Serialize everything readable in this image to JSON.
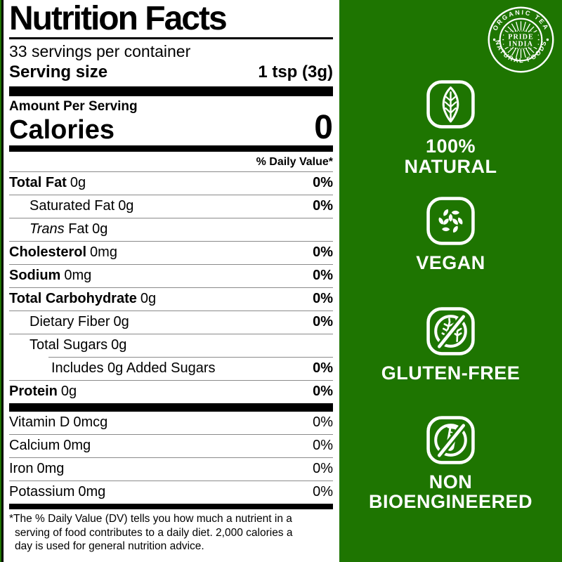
{
  "colors": {
    "panel_green": "#1E7501",
    "label_bg": "#FFFFFF",
    "label_text": "#000000",
    "hairline": "#8A8A8A",
    "badge_white": "#FFFFFF"
  },
  "label": {
    "title": "Nutrition Facts",
    "servings_per_container": "33 servings per container",
    "serving_size_label": "Serving size",
    "serving_size_value": "1 tsp (3g)",
    "amount_per_serving": "Amount Per Serving",
    "calories_label": "Calories",
    "calories_value": "0",
    "daily_value_header": "% Daily Value*",
    "main_rows": [
      {
        "name": "Total Fat",
        "amount": "0g",
        "dv": "0%"
      },
      {
        "name": "Saturated Fat",
        "amount": "0g",
        "dv": "0%"
      },
      {
        "name_italic": "Trans",
        "name": "Fat",
        "amount": "0g",
        "dv": ""
      },
      {
        "name": "Cholesterol",
        "amount": "0mg",
        "dv": "0%"
      },
      {
        "name": "Sodium",
        "amount": "0mg",
        "dv": "0%"
      },
      {
        "name": "Total Carbohydrate",
        "amount": "0g",
        "dv": "0%"
      },
      {
        "name": "Dietary Fiber",
        "amount": "0g",
        "dv": "0%"
      },
      {
        "name": "Total Sugars",
        "amount": "0g",
        "dv": ""
      },
      {
        "name": "Includes 0g Added Sugars",
        "amount": "",
        "dv": "0%"
      },
      {
        "name": "Protein",
        "amount": "0g",
        "dv": "0%"
      }
    ],
    "vitamin_rows": [
      {
        "name": "Vitamin D",
        "amount": "0mcg",
        "dv": "0%"
      },
      {
        "name": "Calcium",
        "amount": "0mg",
        "dv": "0%"
      },
      {
        "name": "Iron",
        "amount": "0mg",
        "dv": "0%"
      },
      {
        "name": "Potassium",
        "amount": "0mg",
        "dv": "0%"
      }
    ],
    "footnote_lines": [
      "*The % Daily Value (DV) tells you how much a nutrient in a",
      "serving of food contributes to a daily diet. 2,000 calories a",
      "day is used for general nutrition advice."
    ]
  },
  "logo": {
    "top_arc": "ORGANIC TEA",
    "bottom_arc": "NATURAL FOODS",
    "center_line1": "PRIDE",
    "center_line2": "INDIA"
  },
  "badges": [
    {
      "icon": "leaf-icon",
      "line1": "100%",
      "line2": "NATURAL"
    },
    {
      "icon": "vegan-leaves-icon",
      "line1": "VEGAN",
      "line2": ""
    },
    {
      "icon": "no-gluten-icon",
      "line1": "GLUTEN-FREE",
      "line2": ""
    },
    {
      "icon": "no-test-tube-icon",
      "line1": "NON",
      "line2": "BIOENGINEERED"
    }
  ]
}
